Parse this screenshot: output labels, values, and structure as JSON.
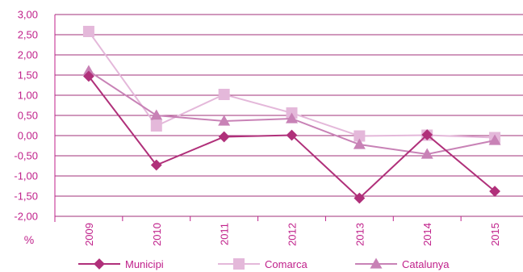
{
  "chart_data": {
    "type": "line",
    "unit_label": "%",
    "categories": [
      "2009",
      "2010",
      "2011",
      "2012",
      "2013",
      "2014",
      "2015"
    ],
    "ylim": [
      -2.0,
      3.0
    ],
    "yticks": [
      "3,00",
      "2,50",
      "2,00",
      "1,50",
      "1,00",
      "0,50",
      "0,00",
      "-0,50",
      "-1,00",
      "-1,50",
      "-2,00"
    ],
    "grid": true,
    "legend_position": "bottom",
    "series": [
      {
        "name": "Municipi",
        "marker": "diamond",
        "color": "#b0307a",
        "values": [
          1.47,
          -0.73,
          -0.03,
          0.01,
          -1.55,
          0.02,
          -1.38
        ]
      },
      {
        "name": "Comarca",
        "marker": "square",
        "color": "#e4b8da",
        "values": [
          2.58,
          0.24,
          1.02,
          0.56,
          -0.01,
          0.01,
          -0.05
        ]
      },
      {
        "name": "Catalunya",
        "marker": "triangle",
        "color": "#c882b6",
        "values": [
          1.6,
          0.5,
          0.36,
          0.42,
          -0.22,
          -0.46,
          -0.12
        ]
      }
    ],
    "colors": {
      "axis": "#c0218b",
      "grid": "#a0307a",
      "text": "#c0218b"
    }
  }
}
